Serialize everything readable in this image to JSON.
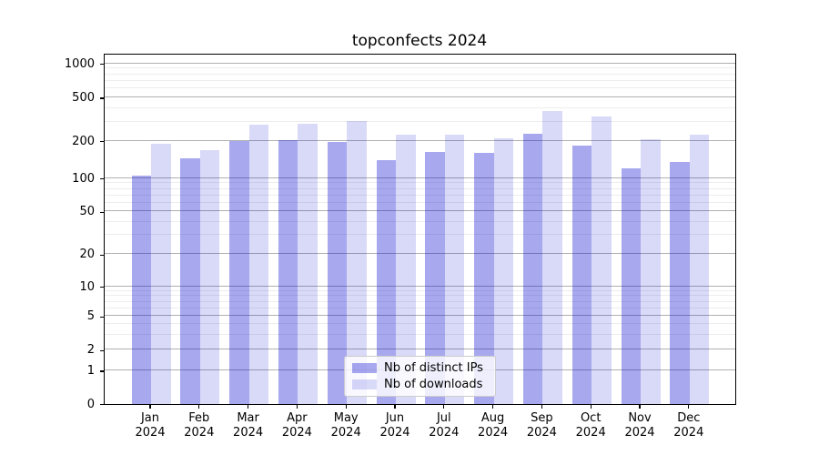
{
  "title": "topconfects 2024",
  "chart_data": {
    "type": "bar",
    "title": "topconfects 2024",
    "categories": [
      "Jan 2024",
      "Feb 2024",
      "Mar 2024",
      "Apr 2024",
      "May 2024",
      "Jun 2024",
      "Jul 2024",
      "Aug 2024",
      "Sep 2024",
      "Oct 2024",
      "Nov 2024",
      "Dec 2024"
    ],
    "series": [
      {
        "name": "Nb of distinct IPs",
        "color": "rgba(0,0,208,0.34)",
        "values": [
          105,
          145,
          199,
          201,
          197,
          139,
          162,
          160,
          230,
          182,
          120,
          135
        ]
      },
      {
        "name": "Nb of downloads",
        "color": "rgba(0,0,208,0.15)",
        "values": [
          188,
          169,
          281,
          285,
          303,
          226,
          227,
          210,
          374,
          331,
          206,
          227
        ]
      }
    ],
    "xlabel": "",
    "ylabel": "",
    "yscale": "asinh",
    "y_ticks": [
      0,
      1,
      2,
      5,
      10,
      20,
      50,
      100,
      200,
      500,
      1000
    ],
    "ylim": [
      0,
      1250
    ],
    "grid": "major and minor horizontal gridlines",
    "legend_position": "lower center"
  },
  "colors": {
    "bar_dark": "rgba(0,0,208,0.34)",
    "bar_light": "rgba(0,0,208,0.15)",
    "grid_major": "#b0b0b0",
    "grid_minor": "#ededed",
    "axis": "#000000"
  }
}
